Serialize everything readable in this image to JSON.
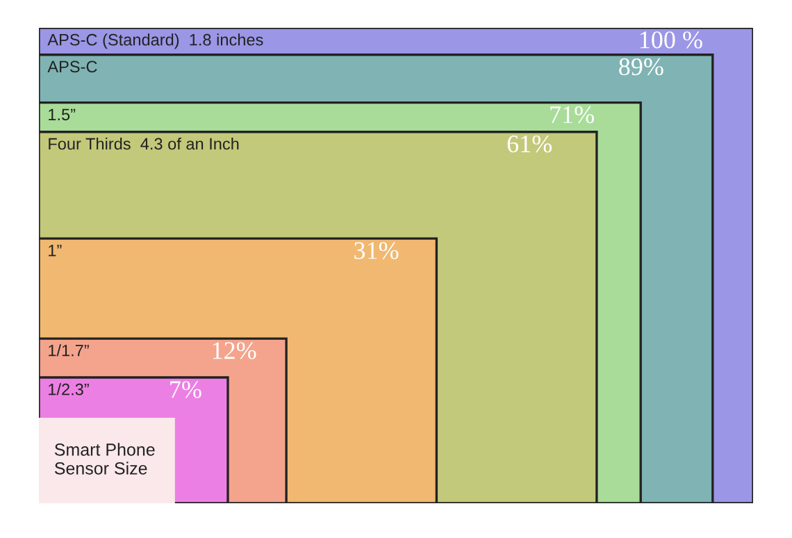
{
  "chart_data": {
    "type": "other",
    "categories": [
      "APS-C (Standard)  1.8 inches",
      "APS-C",
      "1.5”",
      "Four Thirds  4.3 of an Inch",
      "1”",
      "1/1.7”",
      "1/2.3”"
    ],
    "values": [
      100,
      89,
      71,
      61,
      31,
      12,
      7
    ],
    "value_labels": [
      "100 %",
      "89%",
      "71%",
      "61%",
      "31%",
      "12%",
      "7%"
    ],
    "colors": [
      "#9b96e6",
      "#80b3b3",
      "#a8dc98",
      "#c3c97a",
      "#f0b870",
      "#f4a48c",
      "#ec7fe4"
    ],
    "annotations": [
      "Smart Phone\nSensor Size"
    ]
  }
}
